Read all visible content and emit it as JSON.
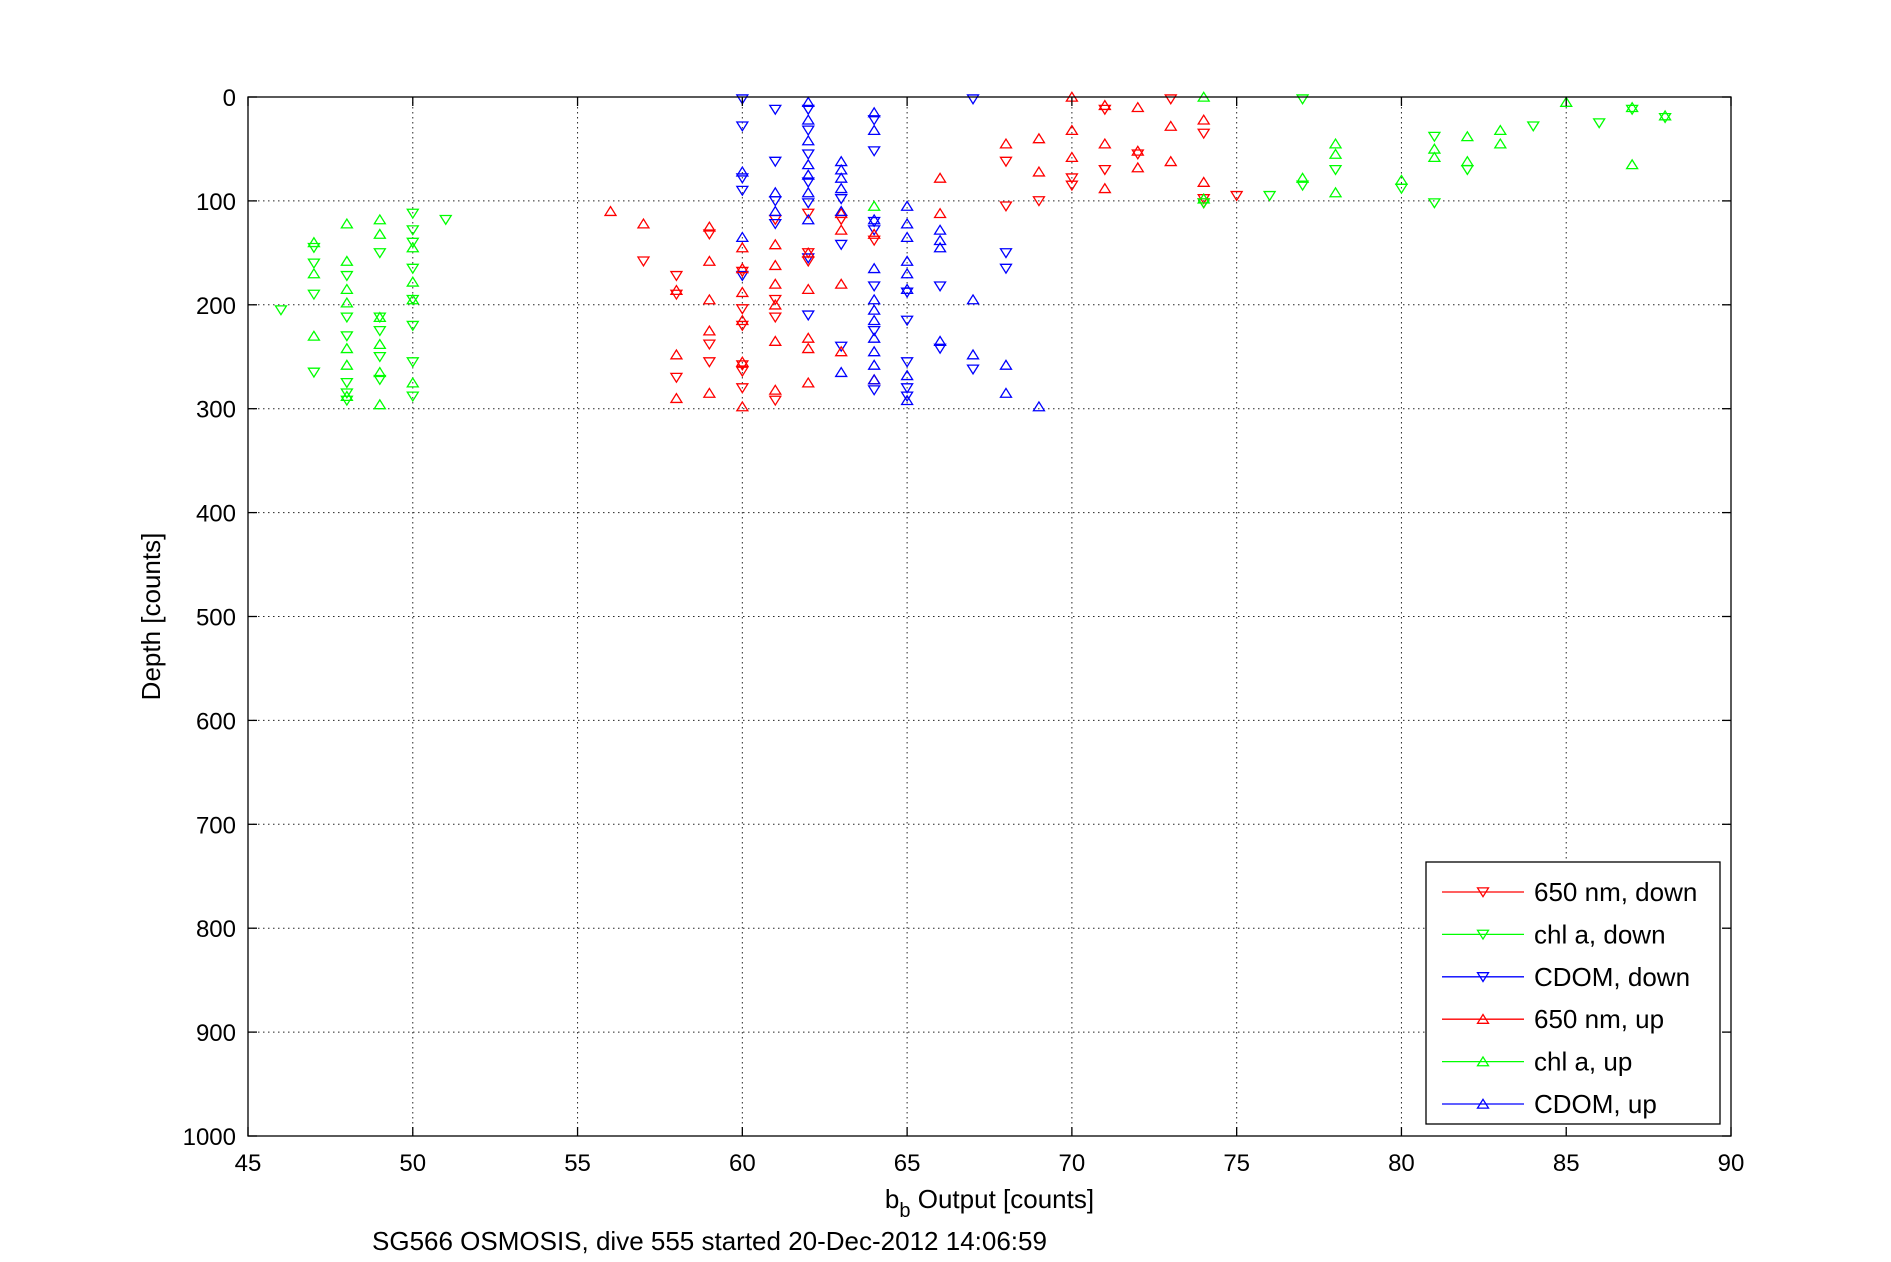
{
  "chart_data": {
    "type": "scatter",
    "xlabel_main": "b",
    "xlabel_sub": "b",
    "xlabel_rest": " Output [counts]",
    "ylabel": "Depth [counts]",
    "caption": "SG566 OSMOSIS, dive 555 started 20-Dec-2012 14:06:59",
    "xlim": [
      45,
      90
    ],
    "ylim": [
      0,
      1000
    ],
    "y_reversed": true,
    "grid": true,
    "xticks": [
      45,
      50,
      55,
      60,
      65,
      70,
      75,
      80,
      85,
      90
    ],
    "yticks": [
      0,
      100,
      200,
      300,
      400,
      500,
      600,
      700,
      800,
      900,
      1000
    ],
    "legend_position": "bottom-right",
    "series": [
      {
        "name": "650 nm, down",
        "color": "#ff0000",
        "marker": "triangle-down",
        "points": [
          [
            58,
            172
          ],
          [
            57,
            158
          ],
          [
            58,
            190
          ],
          [
            58,
            270
          ],
          [
            59,
            132
          ],
          [
            59,
            238
          ],
          [
            59,
            255
          ],
          [
            60,
            168
          ],
          [
            60,
            204
          ],
          [
            60,
            220
          ],
          [
            60,
            258
          ],
          [
            60,
            264
          ],
          [
            60,
            280
          ],
          [
            61,
            118
          ],
          [
            61,
            195
          ],
          [
            61,
            212
          ],
          [
            61,
            292
          ],
          [
            62,
            112
          ],
          [
            62,
            158
          ],
          [
            62,
            150
          ],
          [
            63,
            118
          ],
          [
            64,
            138
          ],
          [
            68,
            62
          ],
          [
            68,
            105
          ],
          [
            69,
            100
          ],
          [
            70,
            85
          ],
          [
            70,
            78
          ],
          [
            71,
            70
          ],
          [
            71,
            12
          ],
          [
            72,
            55
          ],
          [
            73,
            2
          ],
          [
            74,
            35
          ],
          [
            74,
            98
          ],
          [
            74,
            102
          ],
          [
            75,
            95
          ]
        ]
      },
      {
        "name": "chl a, down",
        "color": "#00ff00",
        "marker": "triangle-down",
        "points": [
          [
            46,
            205
          ],
          [
            47,
            145
          ],
          [
            47,
            160
          ],
          [
            47,
            190
          ],
          [
            47,
            265
          ],
          [
            48,
            275
          ],
          [
            48,
            172
          ],
          [
            48,
            212
          ],
          [
            48,
            230
          ],
          [
            48,
            285
          ],
          [
            48,
            292
          ],
          [
            49,
            150
          ],
          [
            49,
            212
          ],
          [
            49,
            225
          ],
          [
            49,
            250
          ],
          [
            49,
            272
          ],
          [
            50,
            112
          ],
          [
            50,
            128
          ],
          [
            50,
            140
          ],
          [
            50,
            165
          ],
          [
            50,
            195
          ],
          [
            50,
            220
          ],
          [
            50,
            255
          ],
          [
            50,
            288
          ],
          [
            51,
            118
          ],
          [
            74,
            102
          ],
          [
            76,
            95
          ],
          [
            77,
            2
          ],
          [
            77,
            85
          ],
          [
            78,
            70
          ],
          [
            80,
            88
          ],
          [
            81,
            102
          ],
          [
            81,
            38
          ],
          [
            82,
            70
          ],
          [
            84,
            28
          ],
          [
            86,
            25
          ],
          [
            87,
            12
          ],
          [
            88,
            20
          ]
        ]
      },
      {
        "name": "CDOM, down",
        "color": "#0000ff",
        "marker": "triangle-down",
        "points": [
          [
            60,
            2
          ],
          [
            60,
            28
          ],
          [
            60,
            78
          ],
          [
            60,
            90
          ],
          [
            60,
            172
          ],
          [
            61,
            12
          ],
          [
            61,
            62
          ],
          [
            61,
            100
          ],
          [
            61,
            122
          ],
          [
            62,
            12
          ],
          [
            62,
            32
          ],
          [
            62,
            55
          ],
          [
            62,
            82
          ],
          [
            62,
            102
          ],
          [
            62,
            155
          ],
          [
            62,
            210
          ],
          [
            63,
            98
          ],
          [
            63,
            142
          ],
          [
            63,
            240
          ],
          [
            64,
            22
          ],
          [
            64,
            52
          ],
          [
            64,
            120
          ],
          [
            64,
            128
          ],
          [
            64,
            182
          ],
          [
            64,
            225
          ],
          [
            64,
            282
          ],
          [
            65,
            188
          ],
          [
            65,
            215
          ],
          [
            65,
            255
          ],
          [
            65,
            280
          ],
          [
            65,
            288
          ],
          [
            66,
            182
          ],
          [
            66,
            242
          ],
          [
            67,
            2
          ],
          [
            67,
            262
          ],
          [
            68,
            150
          ],
          [
            68,
            165
          ]
        ]
      },
      {
        "name": "650 nm, up",
        "color": "#ff0000",
        "marker": "triangle-up",
        "points": [
          [
            56,
            110
          ],
          [
            57,
            122
          ],
          [
            58,
            186
          ],
          [
            58,
            248
          ],
          [
            58,
            290
          ],
          [
            59,
            125
          ],
          [
            59,
            158
          ],
          [
            59,
            195
          ],
          [
            59,
            225
          ],
          [
            59,
            285
          ],
          [
            60,
            145
          ],
          [
            60,
            165
          ],
          [
            60,
            188
          ],
          [
            60,
            215
          ],
          [
            60,
            255
          ],
          [
            60,
            298
          ],
          [
            61,
            142
          ],
          [
            61,
            162
          ],
          [
            61,
            180
          ],
          [
            61,
            200
          ],
          [
            61,
            235
          ],
          [
            61,
            282
          ],
          [
            62,
            150
          ],
          [
            62,
            185
          ],
          [
            62,
            232
          ],
          [
            62,
            242
          ],
          [
            62,
            275
          ],
          [
            63,
            112
          ],
          [
            63,
            128
          ],
          [
            63,
            180
          ],
          [
            63,
            245
          ],
          [
            64,
            132
          ],
          [
            64,
            272
          ],
          [
            66,
            78
          ],
          [
            66,
            112
          ],
          [
            68,
            45
          ],
          [
            69,
            40
          ],
          [
            69,
            72
          ],
          [
            70,
            0
          ],
          [
            70,
            32
          ],
          [
            70,
            58
          ],
          [
            71,
            8
          ],
          [
            71,
            45
          ],
          [
            71,
            88
          ],
          [
            72,
            10
          ],
          [
            72,
            52
          ],
          [
            72,
            68
          ],
          [
            73,
            28
          ],
          [
            73,
            62
          ],
          [
            74,
            22
          ],
          [
            74,
            82
          ]
        ]
      },
      {
        "name": "chl a, up",
        "color": "#00ff00",
        "marker": "triangle-up",
        "points": [
          [
            47,
            140
          ],
          [
            47,
            170
          ],
          [
            47,
            230
          ],
          [
            48,
            122
          ],
          [
            48,
            158
          ],
          [
            48,
            185
          ],
          [
            48,
            198
          ],
          [
            48,
            242
          ],
          [
            48,
            258
          ],
          [
            48,
            288
          ],
          [
            49,
            118
          ],
          [
            49,
            132
          ],
          [
            49,
            212
          ],
          [
            49,
            238
          ],
          [
            49,
            265
          ],
          [
            49,
            296
          ],
          [
            50,
            145
          ],
          [
            50,
            178
          ],
          [
            50,
            195
          ],
          [
            50,
            275
          ],
          [
            64,
            105
          ],
          [
            74,
            0
          ],
          [
            74,
            98
          ],
          [
            77,
            78
          ],
          [
            78,
            45
          ],
          [
            78,
            55
          ],
          [
            78,
            92
          ],
          [
            80,
            80
          ],
          [
            81,
            50
          ],
          [
            81,
            58
          ],
          [
            82,
            38
          ],
          [
            82,
            62
          ],
          [
            83,
            32
          ],
          [
            83,
            45
          ],
          [
            85,
            5
          ],
          [
            87,
            10
          ],
          [
            87,
            65
          ],
          [
            88,
            18
          ]
        ]
      },
      {
        "name": "CDOM, up",
        "color": "#0000ff",
        "marker": "triangle-up",
        "points": [
          [
            60,
            135
          ],
          [
            60,
            72
          ],
          [
            61,
            92
          ],
          [
            61,
            110
          ],
          [
            62,
            5
          ],
          [
            62,
            22
          ],
          [
            62,
            42
          ],
          [
            62,
            65
          ],
          [
            62,
            75
          ],
          [
            62,
            92
          ],
          [
            62,
            118
          ],
          [
            63,
            62
          ],
          [
            63,
            70
          ],
          [
            63,
            78
          ],
          [
            63,
            88
          ],
          [
            63,
            110
          ],
          [
            63,
            265
          ],
          [
            64,
            15
          ],
          [
            64,
            32
          ],
          [
            64,
            118
          ],
          [
            64,
            165
          ],
          [
            64,
            195
          ],
          [
            64,
            205
          ],
          [
            64,
            215
          ],
          [
            64,
            232
          ],
          [
            64,
            245
          ],
          [
            64,
            258
          ],
          [
            64,
            272
          ],
          [
            65,
            105
          ],
          [
            65,
            122
          ],
          [
            65,
            135
          ],
          [
            65,
            158
          ],
          [
            65,
            170
          ],
          [
            65,
            185
          ],
          [
            65,
            268
          ],
          [
            65,
            292
          ],
          [
            66,
            128
          ],
          [
            66,
            138
          ],
          [
            66,
            145
          ],
          [
            66,
            235
          ],
          [
            67,
            195
          ],
          [
            67,
            248
          ],
          [
            68,
            258
          ],
          [
            68,
            285
          ],
          [
            69,
            298
          ]
        ]
      }
    ]
  }
}
